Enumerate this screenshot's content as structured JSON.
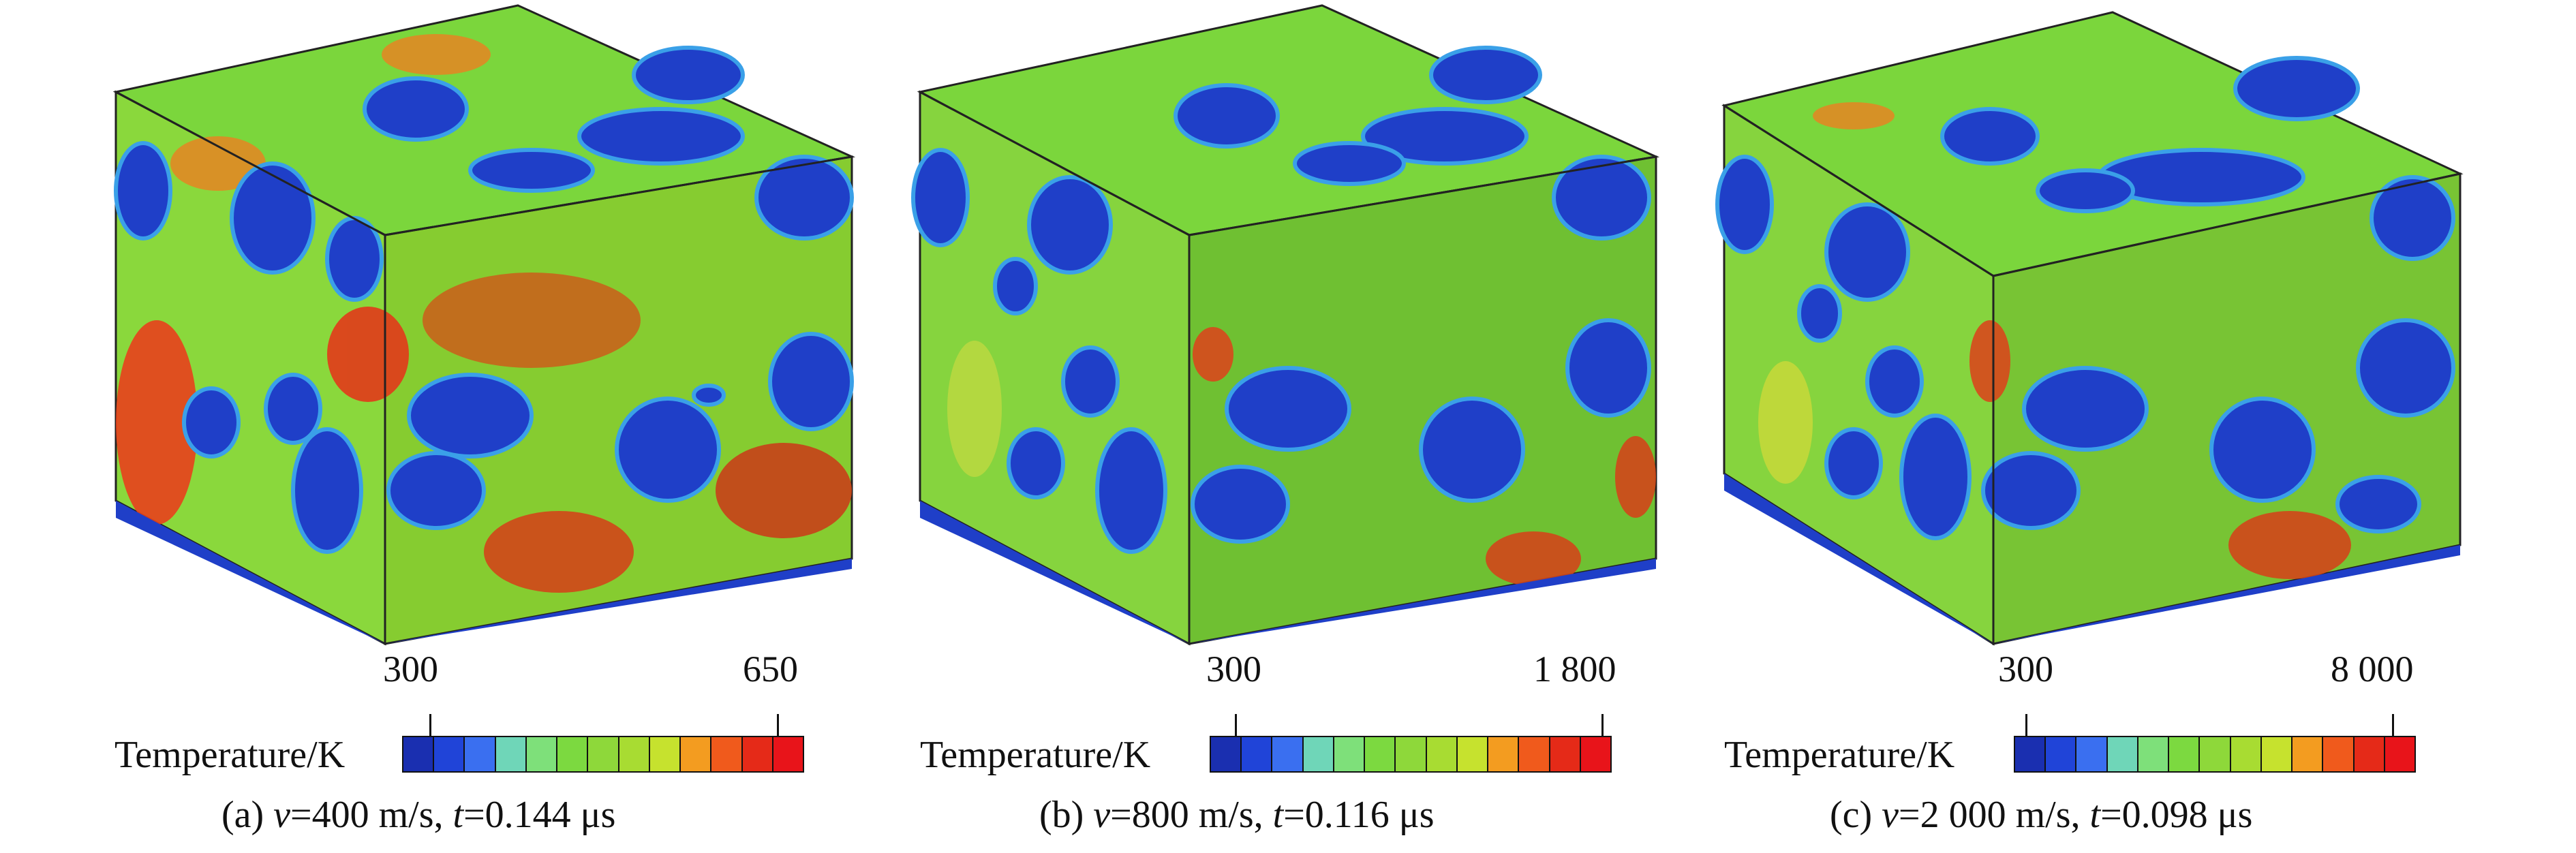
{
  "colorbar": {
    "title": "Temperature/K",
    "colors": [
      "#1a2fb0",
      "#2044d8",
      "#3a6ff0",
      "#6fd6b8",
      "#7ee07a",
      "#7cd940",
      "#8ed83a",
      "#a8dc32",
      "#c6e22e",
      "#f39c20",
      "#f05a1c",
      "#e52a18",
      "#e8141a"
    ]
  },
  "panels": [
    {
      "min_label": "300",
      "max_label": "650",
      "caption": {
        "label": "(a) ",
        "v_var": "v",
        "v_text": "=400 m/s, ",
        "t_var": "t",
        "t_text": "=0.144 μs"
      }
    },
    {
      "min_label": "300",
      "max_label": "1 800",
      "caption": {
        "label": "(b) ",
        "v_var": "v",
        "v_text": "=800 m/s, ",
        "t_var": "t",
        "t_text": "=0.116 μs"
      }
    },
    {
      "min_label": "300",
      "max_label": "8 000",
      "caption": {
        "label": "(c) ",
        "v_var": "v",
        "v_text": "=2 000 m/s, ",
        "t_var": "t",
        "t_text": "=0.098 μs"
      }
    }
  ]
}
